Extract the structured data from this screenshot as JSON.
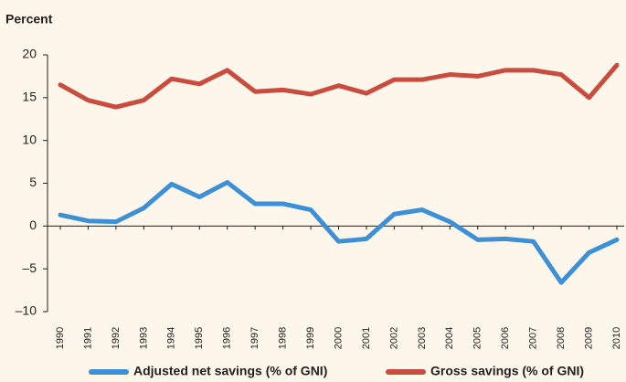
{
  "chart_data": {
    "type": "line",
    "y_label": "Percent",
    "categories": [
      "1990",
      "1991",
      "1992",
      "1993",
      "1994",
      "1995",
      "1996",
      "1997",
      "1998",
      "1999",
      "2000",
      "2001",
      "2002",
      "2003",
      "2004",
      "2005",
      "2006",
      "2007",
      "2008",
      "2009",
      "2010"
    ],
    "series": [
      {
        "name": "Adjusted net savings (% of GNI)",
        "color": "#3d8fd6",
        "values": [
          1.3,
          0.6,
          0.5,
          2.1,
          4.9,
          3.4,
          5.1,
          2.6,
          2.6,
          1.9,
          -1.8,
          -1.5,
          1.4,
          1.9,
          0.5,
          -1.6,
          -1.5,
          -1.8,
          -6.6,
          -3.1,
          -1.6
        ]
      },
      {
        "name": "Gross savings (% of GNI)",
        "color": "#c94c3e",
        "values": [
          16.5,
          14.7,
          13.9,
          14.7,
          17.2,
          16.6,
          18.2,
          15.7,
          15.9,
          15.4,
          16.4,
          15.5,
          17.1,
          17.1,
          17.7,
          17.5,
          18.2,
          18.2,
          17.7,
          15.0,
          18.8
        ]
      }
    ],
    "ylim": [
      -10,
      20
    ],
    "yticks": [
      {
        "value": -10,
        "label": "–10"
      },
      {
        "value": -5,
        "label": "–5"
      },
      0,
      5,
      10,
      15,
      20
    ],
    "grid": false,
    "legend": "bottom"
  }
}
